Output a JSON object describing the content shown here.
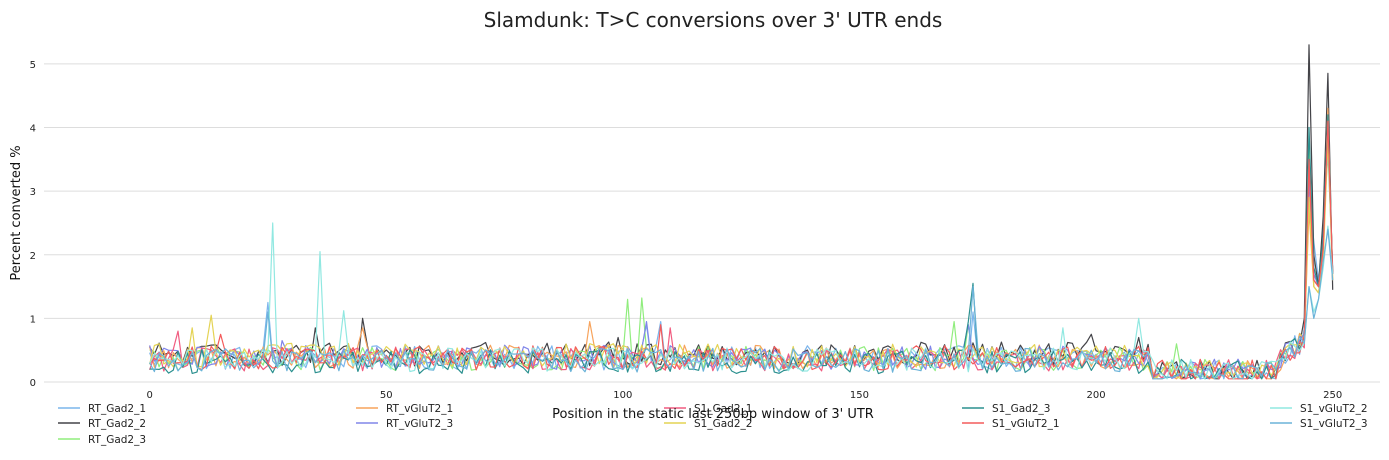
{
  "chart_data": {
    "type": "line",
    "title": "Slamdunk: T>C conversions over 3' UTR ends",
    "xlabel": "Position in the static last 250bp window of 3' UTR",
    "ylabel": "Percent converted %",
    "xlim": [
      -20,
      260
    ],
    "ylim": [
      0,
      5.25
    ],
    "x_ticks": [
      0,
      50,
      100,
      150,
      200,
      250
    ],
    "y_ticks": [
      0,
      1,
      2,
      3,
      4,
      5
    ],
    "grid": "horizontal",
    "legend_position": "bottom",
    "x_range": [
      0,
      250
    ],
    "series": [
      {
        "name": "RT_Gad2_1",
        "color": "#7cb5ec",
        "baseline": 0.36,
        "spikes": [
          [
            25,
            1.25
          ],
          [
            105,
            0.9
          ],
          [
            108,
            0.95
          ],
          [
            174,
            1.1
          ],
          [
            245,
            3.1
          ],
          [
            246,
            2.2
          ],
          [
            247,
            1.6
          ],
          [
            248,
            2.4
          ],
          [
            249,
            3.6
          ],
          [
            250,
            1.8
          ]
        ]
      },
      {
        "name": "RT_Gad2_2",
        "color": "#434348",
        "baseline": 0.42,
        "spikes": [
          [
            35,
            0.85
          ],
          [
            45,
            1.0
          ],
          [
            99,
            0.7
          ],
          [
            199,
            0.75
          ],
          [
            209,
            0.7
          ],
          [
            244,
            1.0
          ],
          [
            245,
            5.3
          ],
          [
            246,
            2.0
          ],
          [
            247,
            1.5
          ],
          [
            248,
            2.6
          ],
          [
            249,
            4.85
          ],
          [
            250,
            1.45
          ]
        ]
      },
      {
        "name": "RT_Gad2_3",
        "color": "#90ed7d",
        "baseline": 0.35,
        "spikes": [
          [
            101,
            1.3
          ],
          [
            104,
            1.32
          ],
          [
            170,
            0.95
          ],
          [
            173,
            0.9
          ],
          [
            217,
            0.6
          ],
          [
            245,
            3.7
          ],
          [
            246,
            1.6
          ],
          [
            247,
            1.5
          ],
          [
            248,
            2.0
          ],
          [
            249,
            4.1
          ],
          [
            250,
            1.7
          ]
        ]
      },
      {
        "name": "RT_vGluT2_1",
        "color": "#f7a35c",
        "baseline": 0.38,
        "spikes": [
          [
            45,
            0.85
          ],
          [
            93,
            0.95
          ],
          [
            245,
            2.7
          ],
          [
            246,
            1.5
          ],
          [
            247,
            1.4
          ],
          [
            248,
            2.0
          ],
          [
            249,
            4.3
          ],
          [
            250,
            1.6
          ]
        ]
      },
      {
        "name": "RT_vGluT2_3",
        "color": "#8085e9",
        "baseline": 0.37,
        "spikes": [
          [
            28,
            0.65
          ],
          [
            105,
            0.95
          ],
          [
            173,
            0.9
          ],
          [
            245,
            3.2
          ],
          [
            246,
            1.7
          ],
          [
            247,
            1.5
          ],
          [
            248,
            2.2
          ],
          [
            249,
            3.9
          ],
          [
            250,
            1.7
          ]
        ]
      },
      {
        "name": "S1_Gad2_1",
        "color": "#f15c80",
        "baseline": 0.34,
        "spikes": [
          [
            6,
            0.8
          ],
          [
            110,
            0.85
          ],
          [
            245,
            3.4
          ],
          [
            246,
            1.6
          ],
          [
            247,
            1.5
          ],
          [
            248,
            2.1
          ],
          [
            249,
            4.0
          ],
          [
            250,
            1.7
          ]
        ]
      },
      {
        "name": "S1_Gad2_2",
        "color": "#e4d354",
        "baseline": 0.4,
        "spikes": [
          [
            9,
            0.85
          ],
          [
            13,
            1.05
          ],
          [
            23,
            0.5
          ],
          [
            245,
            2.9
          ],
          [
            246,
            1.5
          ],
          [
            247,
            1.4
          ],
          [
            248,
            1.9
          ],
          [
            249,
            3.8
          ],
          [
            250,
            1.6
          ]
        ]
      },
      {
        "name": "S1_Gad2_3",
        "color": "#2b908f",
        "baseline": 0.3,
        "spikes": [
          [
            173,
            0.95
          ],
          [
            174,
            1.55
          ],
          [
            244,
            0.7
          ],
          [
            245,
            4.0
          ],
          [
            246,
            1.8
          ],
          [
            247,
            1.5
          ],
          [
            248,
            2.3
          ],
          [
            249,
            4.2
          ],
          [
            250,
            1.7
          ]
        ]
      },
      {
        "name": "S1_vGluT2_1",
        "color": "#f45b5b",
        "baseline": 0.36,
        "spikes": [
          [
            15,
            0.75
          ],
          [
            108,
            0.9
          ],
          [
            245,
            3.5
          ],
          [
            246,
            1.6
          ],
          [
            247,
            1.5
          ],
          [
            248,
            2.1
          ],
          [
            249,
            4.1
          ],
          [
            250,
            1.7
          ]
        ]
      },
      {
        "name": "S1_vGluT2_2",
        "color": "#91e8e1",
        "baseline": 0.33,
        "spikes": [
          [
            26,
            2.5
          ],
          [
            36,
            2.05
          ],
          [
            41,
            1.12
          ],
          [
            193,
            0.85
          ],
          [
            209,
            1.0
          ],
          [
            245,
            1.5
          ],
          [
            246,
            1.1
          ],
          [
            247,
            1.3
          ],
          [
            248,
            1.8
          ],
          [
            249,
            2.45
          ],
          [
            250,
            1.7
          ]
        ]
      },
      {
        "name": "S1_vGluT2_3",
        "color": "#6bb3d9",
        "baseline": 0.32,
        "spikes": [
          [
            25,
            1.1
          ],
          [
            174,
            1.5
          ],
          [
            245,
            1.5
          ],
          [
            246,
            1.0
          ],
          [
            247,
            1.3
          ],
          [
            248,
            1.9
          ],
          [
            249,
            2.4
          ],
          [
            250,
            1.6
          ]
        ]
      }
    ]
  }
}
